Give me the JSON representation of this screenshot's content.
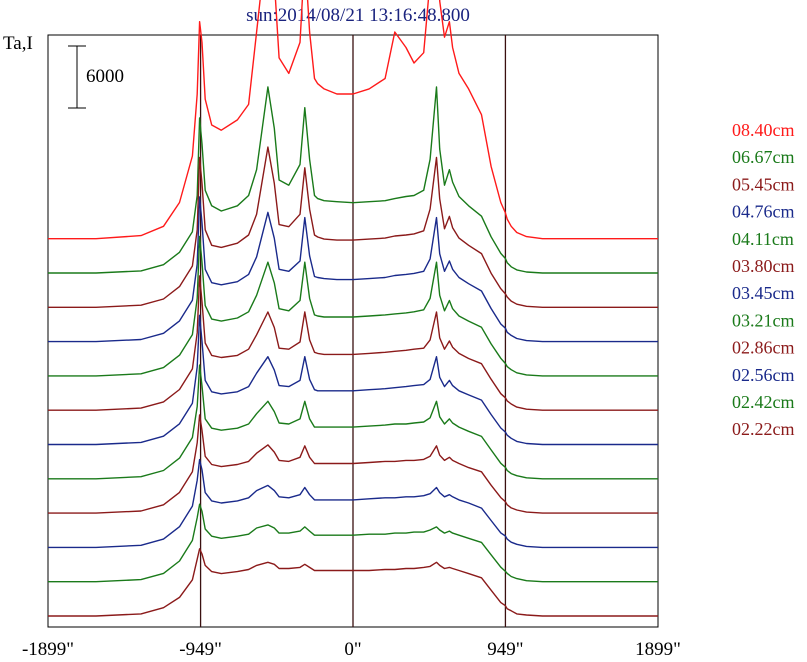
{
  "chart_data": {
    "type": "line",
    "title": "sun:2014/08/21 13:16:48.800",
    "ylabel": "Ta,I",
    "scale_bar_label": "6000",
    "xlim": [
      -1899,
      1899
    ],
    "x_ticks": [
      "-1899\"",
      "-949\"",
      "0\"",
      "949\"",
      "1899\""
    ],
    "x_tick_values": [
      -1899,
      -949,
      0,
      949,
      1899
    ],
    "vertical_lines": [
      -949,
      0,
      949
    ],
    "grid": false,
    "legend_position": "right",
    "colors": {
      "title": "#1a237e",
      "frame": "#000000",
      "vline": "#3a1010"
    },
    "x_profile": [
      -1899,
      -1600,
      -1320,
      -1180,
      -1080,
      -1000,
      -970,
      -955,
      -940,
      -920,
      -880,
      -820,
      -720,
      -650,
      -600,
      -530,
      -490,
      -460,
      -400,
      -330,
      -300,
      -270,
      -240,
      -220,
      -180,
      -100,
      0,
      100,
      200,
      260,
      330,
      380,
      440,
      480,
      520,
      540,
      570,
      600,
      620,
      660,
      720,
      800,
      860,
      920,
      949,
      960,
      985,
      1020,
      1080,
      1180,
      1400,
      1899
    ],
    "series": [
      {
        "name": "08.40cm",
        "color": "#ff1a1a",
        "values": [
          0,
          0,
          300,
          1200,
          3500,
          8000,
          14000,
          21000,
          19000,
          13500,
          11000,
          10500,
          11500,
          13000,
          20000,
          30000,
          25000,
          17500,
          16000,
          19000,
          27500,
          20000,
          15500,
          15000,
          14500,
          14000,
          14000,
          14500,
          15500,
          20000,
          18500,
          17000,
          18000,
          25000,
          30000,
          23000,
          19500,
          21000,
          18500,
          16000,
          14500,
          12000,
          7000,
          3500,
          2500,
          1900,
          1200,
          600,
          200,
          0,
          0,
          0
        ]
      },
      {
        "name": "06.67cm",
        "color": "#1a7a1a",
        "values": [
          0,
          0,
          200,
          800,
          2000,
          4000,
          7500,
          15000,
          12500,
          8000,
          6500,
          6000,
          6500,
          7500,
          10000,
          18000,
          14000,
          9000,
          8500,
          10500,
          16000,
          11000,
          7500,
          7200,
          7000,
          6900,
          6800,
          6900,
          7000,
          7200,
          7400,
          7500,
          8000,
          11000,
          18000,
          12000,
          8500,
          10000,
          8800,
          7400,
          6500,
          5500,
          3500,
          1900,
          1400,
          1000,
          600,
          300,
          100,
          0,
          0,
          0
        ]
      },
      {
        "name": "05.45cm",
        "color": "#8b1a1a",
        "values": [
          0,
          0,
          200,
          800,
          2000,
          4000,
          7500,
          14500,
          12000,
          7500,
          6000,
          5800,
          6200,
          7000,
          9000,
          15500,
          12000,
          8000,
          7800,
          9000,
          13500,
          9500,
          7000,
          6800,
          6600,
          6500,
          6500,
          6600,
          6700,
          6900,
          7000,
          7100,
          7400,
          9500,
          14500,
          10500,
          7600,
          8800,
          7700,
          6700,
          6000,
          5200,
          3300,
          1800,
          1300,
          1000,
          600,
          300,
          100,
          0,
          0,
          0
        ]
      },
      {
        "name": "04.76cm",
        "color": "#1a2a8b",
        "values": [
          0,
          0,
          200,
          800,
          2000,
          4000,
          7500,
          14000,
          11500,
          7000,
          5700,
          5500,
          5800,
          6500,
          8200,
          12500,
          10000,
          7000,
          6800,
          7800,
          12000,
          8300,
          6300,
          6200,
          6100,
          6000,
          6000,
          6100,
          6200,
          6400,
          6500,
          6600,
          6800,
          8000,
          12000,
          8500,
          6800,
          7800,
          7000,
          6200,
          5600,
          4900,
          3200,
          1700,
          1300,
          900,
          600,
          300,
          100,
          0,
          0,
          0
        ]
      },
      {
        "name": "04.11cm",
        "color": "#1a7a1a",
        "values": [
          0,
          0,
          200,
          800,
          2000,
          4000,
          7500,
          13500,
          11000,
          6800,
          5500,
          5300,
          5600,
          6200,
          7800,
          11000,
          9000,
          6500,
          6300,
          7300,
          11000,
          7500,
          5900,
          5800,
          5700,
          5700,
          5700,
          5800,
          5900,
          6000,
          6100,
          6200,
          6400,
          7500,
          11000,
          7800,
          6300,
          7300,
          6500,
          5800,
          5300,
          4700,
          3100,
          1700,
          1200,
          900,
          600,
          300,
          100,
          0,
          0,
          0
        ]
      },
      {
        "name": "03.80cm",
        "color": "#8b1a1a",
        "values": [
          0,
          0,
          200,
          800,
          2000,
          4000,
          7500,
          13000,
          10500,
          6500,
          5300,
          5100,
          5300,
          5900,
          7300,
          9500,
          8000,
          6000,
          5900,
          6600,
          9500,
          6800,
          5600,
          5500,
          5400,
          5400,
          5400,
          5500,
          5600,
          5700,
          5800,
          5900,
          6000,
          6800,
          9500,
          7000,
          5900,
          6700,
          6100,
          5500,
          5000,
          4500,
          3000,
          1600,
          1200,
          900,
          600,
          300,
          100,
          0,
          0,
          0
        ]
      },
      {
        "name": "03.45cm",
        "color": "#1a2a8b",
        "values": [
          0,
          0,
          200,
          800,
          2000,
          4000,
          7500,
          12500,
          10000,
          6200,
          5100,
          4900,
          5100,
          5600,
          6900,
          8500,
          7200,
          5700,
          5600,
          6200,
          8500,
          6300,
          5300,
          5200,
          5200,
          5200,
          5200,
          5300,
          5400,
          5500,
          5600,
          5700,
          5800,
          6300,
          8500,
          6500,
          5600,
          6200,
          5700,
          5200,
          4800,
          4300,
          2900,
          1600,
          1200,
          900,
          600,
          300,
          100,
          0,
          0,
          0
        ]
      },
      {
        "name": "03.21cm",
        "color": "#1a7a1a",
        "values": [
          0,
          0,
          200,
          800,
          2000,
          4000,
          7000,
          11000,
          9000,
          5800,
          4900,
          4700,
          4900,
          5300,
          6300,
          7500,
          6500,
          5400,
          5300,
          5800,
          7500,
          5800,
          5000,
          5000,
          5000,
          5000,
          5000,
          5100,
          5200,
          5300,
          5300,
          5400,
          5500,
          5900,
          7500,
          6000,
          5300,
          5800,
          5400,
          5000,
          4600,
          4100,
          2800,
          1500,
          1100,
          800,
          500,
          300,
          100,
          0,
          0,
          0
        ]
      },
      {
        "name": "02.86cm",
        "color": "#8b1a1a",
        "values": [
          0,
          0,
          200,
          800,
          2000,
          4000,
          6800,
          9500,
          8000,
          5500,
          4700,
          4500,
          4700,
          5000,
          5800,
          6600,
          5900,
          5100,
          5000,
          5400,
          6500,
          5400,
          4800,
          4800,
          4800,
          4800,
          4800,
          4900,
          5000,
          5000,
          5100,
          5100,
          5200,
          5500,
          6500,
          5600,
          5100,
          5400,
          5100,
          4800,
          4400,
          4000,
          2700,
          1500,
          1100,
          800,
          500,
          300,
          100,
          0,
          0,
          0
        ]
      },
      {
        "name": "02.56cm",
        "color": "#1a2a8b",
        "values": [
          0,
          0,
          200,
          800,
          2000,
          4000,
          6500,
          8500,
          7500,
          5300,
          4500,
          4300,
          4500,
          4800,
          5500,
          6000,
          5500,
          4900,
          4800,
          5100,
          5800,
          5100,
          4600,
          4600,
          4600,
          4600,
          4600,
          4700,
          4800,
          4800,
          4900,
          4900,
          5000,
          5200,
          5800,
          5300,
          4900,
          5100,
          4900,
          4600,
          4300,
          3800,
          2600,
          1400,
          1100,
          800,
          500,
          300,
          100,
          0,
          0,
          0
        ]
      },
      {
        "name": "02.42cm",
        "color": "#1a7a1a",
        "values": [
          0,
          0,
          200,
          800,
          2000,
          4000,
          6200,
          7500,
          6800,
          5100,
          4400,
          4200,
          4400,
          4600,
          5200,
          5500,
          5200,
          4700,
          4700,
          4900,
          5300,
          4900,
          4500,
          4500,
          4500,
          4500,
          4500,
          4600,
          4600,
          4700,
          4700,
          4800,
          4800,
          5000,
          5300,
          5000,
          4700,
          4900,
          4700,
          4500,
          4200,
          3800,
          2600,
          1400,
          1000,
          800,
          500,
          300,
          100,
          0,
          0,
          0
        ]
      },
      {
        "name": "02.22cm",
        "color": "#8b1a1a",
        "values": [
          0,
          0,
          200,
          800,
          1800,
          3500,
          5500,
          6500,
          6000,
          4900,
          4300,
          4100,
          4300,
          4500,
          4900,
          5200,
          5000,
          4600,
          4600,
          4700,
          5000,
          4700,
          4400,
          4400,
          4400,
          4400,
          4400,
          4400,
          4500,
          4500,
          4600,
          4600,
          4700,
          4800,
          5200,
          4900,
          4600,
          4700,
          4600,
          4400,
          4100,
          3700,
          2500,
          1300,
          1000,
          700,
          500,
          200,
          100,
          0,
          0,
          0
        ]
      }
    ]
  }
}
